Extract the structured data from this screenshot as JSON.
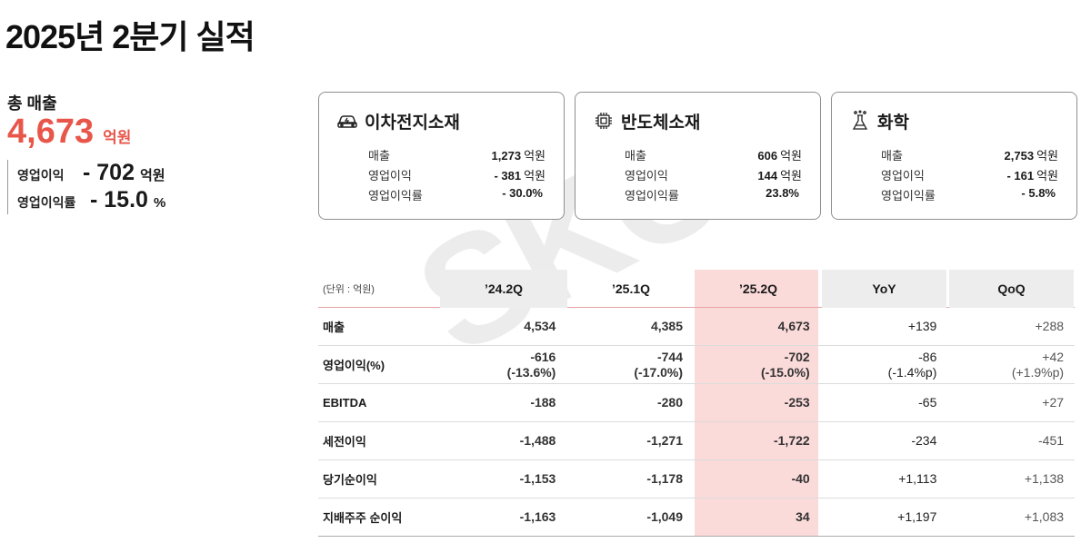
{
  "title": "2025년 2분기 실적",
  "summary": {
    "label": "총 매출",
    "revenue": "4,673",
    "revenue_unit": "억원",
    "op_income_label": "영업이익",
    "op_income": "- 702",
    "op_income_unit": "억원",
    "op_margin_label": "영업이익률",
    "op_margin": "- 15.0",
    "op_margin_unit": "%"
  },
  "cards": [
    {
      "icon": "battery-car-icon",
      "title": "이차전지소재",
      "rows": [
        {
          "label": "매출",
          "value": "1,273",
          "unit": "억원"
        },
        {
          "label": "영업이익",
          "value": "- 381",
          "unit": "억원"
        },
        {
          "label": "영업이익률",
          "value": "- 30.0%",
          "unit": ""
        }
      ]
    },
    {
      "icon": "chip-icon",
      "title": "반도체소재",
      "rows": [
        {
          "label": "매출",
          "value": "606",
          "unit": "억원"
        },
        {
          "label": "영업이익",
          "value": "144",
          "unit": "억원"
        },
        {
          "label": "영업이익률",
          "value": "23.8%",
          "unit": ""
        }
      ]
    },
    {
      "icon": "flask-icon",
      "title": "화학",
      "rows": [
        {
          "label": "매출",
          "value": "2,753",
          "unit": "억원"
        },
        {
          "label": "영업이익",
          "value": "- 161",
          "unit": "억원"
        },
        {
          "label": "영업이익률",
          "value": "- 5.8%",
          "unit": ""
        }
      ]
    }
  ],
  "watermark": "SKC",
  "table": {
    "unit_note": "(단위 : 억원)",
    "headers": [
      "’24.2Q",
      "’25.1Q",
      "’25.2Q",
      "YoY",
      "QoQ"
    ],
    "rows": [
      {
        "label": "매출",
        "cells": [
          [
            "4,534",
            ""
          ],
          [
            "4,385",
            ""
          ],
          [
            "4,673",
            ""
          ],
          [
            "+139",
            ""
          ],
          [
            "+288",
            ""
          ]
        ]
      },
      {
        "label": "영업이익(%)",
        "cells": [
          [
            "-616",
            "(-13.6%)"
          ],
          [
            "-744",
            "(-17.0%)"
          ],
          [
            "-702",
            "(-15.0%)"
          ],
          [
            "-86",
            "(-1.4%p)"
          ],
          [
            "+42",
            "(+1.9%p)"
          ]
        ]
      },
      {
        "label": "EBITDA",
        "cells": [
          [
            "-188",
            ""
          ],
          [
            "-280",
            ""
          ],
          [
            "-253",
            ""
          ],
          [
            "-65",
            ""
          ],
          [
            "+27",
            ""
          ]
        ]
      },
      {
        "label": "세전이익",
        "cells": [
          [
            "-1,488",
            ""
          ],
          [
            "-1,271",
            ""
          ],
          [
            "-1,722",
            ""
          ],
          [
            "-234",
            ""
          ],
          [
            "-451",
            ""
          ]
        ]
      },
      {
        "label": "당기순이익",
        "cells": [
          [
            "-1,153",
            ""
          ],
          [
            "-1,178",
            ""
          ],
          [
            "-40",
            ""
          ],
          [
            "+1,113",
            ""
          ],
          [
            "+1,138",
            ""
          ]
        ]
      },
      {
        "label": "지배주주 순이익",
        "cells": [
          [
            "-1,163",
            ""
          ],
          [
            "-1,049",
            ""
          ],
          [
            "34",
            ""
          ],
          [
            "+1,197",
            ""
          ],
          [
            "+1,083",
            ""
          ]
        ]
      }
    ]
  }
}
